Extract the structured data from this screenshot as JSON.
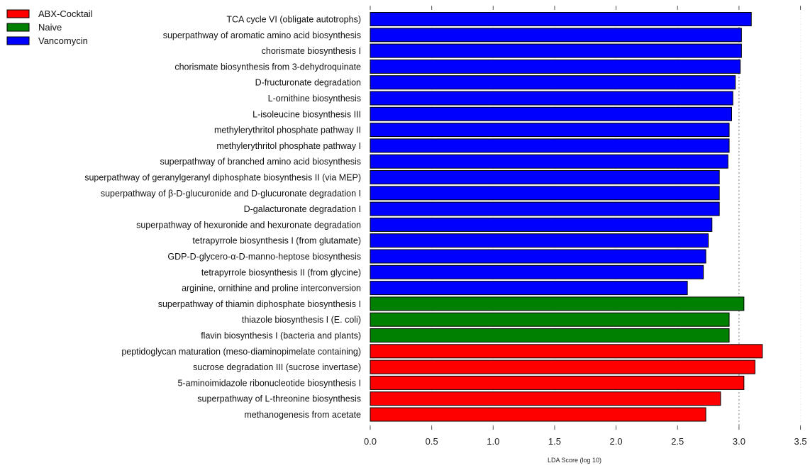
{
  "chart_data": {
    "type": "bar",
    "orientation": "horizontal",
    "title": "",
    "xlabel": "LDA Score (log 10)",
    "ylabel": "",
    "xlim": [
      0,
      3.5
    ],
    "xticks": [
      0.0,
      0.5,
      1.0,
      1.5,
      2.0,
      2.5,
      3.0,
      3.5
    ],
    "xtick_labels": [
      "0.0",
      "0.5",
      "1.0",
      "1.5",
      "2.0",
      "2.5",
      "3.0",
      "3.5"
    ],
    "reference_line": 3.0,
    "legend_position": "top-left",
    "legend": [
      {
        "name": "ABX-Cocktail",
        "color": "#ff0000"
      },
      {
        "name": "Naive",
        "color": "#008000"
      },
      {
        "name": "Vancomycin",
        "color": "#0000ff"
      }
    ],
    "bars": [
      {
        "label": "TCA cycle VI (obligate autotrophs)",
        "value": 3.1,
        "group": "Vancomycin"
      },
      {
        "label": "superpathway of aromatic amino acid biosynthesis",
        "value": 3.02,
        "group": "Vancomycin"
      },
      {
        "label": "chorismate biosynthesis I",
        "value": 3.02,
        "group": "Vancomycin"
      },
      {
        "label": "chorismate biosynthesis from 3-dehydroquinate",
        "value": 3.01,
        "group": "Vancomycin"
      },
      {
        "label": "D-fructuronate degradation",
        "value": 2.97,
        "group": "Vancomycin"
      },
      {
        "label": "L-ornithine biosynthesis",
        "value": 2.95,
        "group": "Vancomycin"
      },
      {
        "label": "L-isoleucine biosynthesis III",
        "value": 2.94,
        "group": "Vancomycin"
      },
      {
        "label": "methylerythritol phosphate pathway II",
        "value": 2.92,
        "group": "Vancomycin"
      },
      {
        "label": "methylerythritol phosphate pathway I",
        "value": 2.92,
        "group": "Vancomycin"
      },
      {
        "label": "superpathway of branched amino acid biosynthesis",
        "value": 2.91,
        "group": "Vancomycin"
      },
      {
        "label": "superpathway of geranylgeranyl diphosphate biosynthesis II (via MEP)",
        "value": 2.84,
        "group": "Vancomycin"
      },
      {
        "label": "superpathway of β-D-glucuronide and D-glucuronate degradation I",
        "value": 2.84,
        "group": "Vancomycin"
      },
      {
        "label": "D-galacturonate degradation I",
        "value": 2.84,
        "group": "Vancomycin"
      },
      {
        "label": "superpathway of hexuronide and hexuronate degradation",
        "value": 2.78,
        "group": "Vancomycin"
      },
      {
        "label": "tetrapyrrole biosynthesis I (from glutamate)",
        "value": 2.75,
        "group": "Vancomycin"
      },
      {
        "label": "GDP-D-glycero-α-D-manno-heptose biosynthesis",
        "value": 2.73,
        "group": "Vancomycin"
      },
      {
        "label": "tetrapyrrole biosynthesis II (from glycine)",
        "value": 2.71,
        "group": "Vancomycin"
      },
      {
        "label": "arginine, ornithine and proline interconversion",
        "value": 2.58,
        "group": "Vancomycin"
      },
      {
        "label": "superpathway of thiamin diphosphate biosynthesis I",
        "value": 3.04,
        "group": "Naive"
      },
      {
        "label": "thiazole biosynthesis I (E. coli)",
        "value": 2.92,
        "group": "Naive"
      },
      {
        "label": "flavin biosynthesis I (bacteria and plants)",
        "value": 2.92,
        "group": "Naive"
      },
      {
        "label": "peptidoglycan maturation (meso-diaminopimelate containing)",
        "value": 3.19,
        "group": "ABX-Cocktail"
      },
      {
        "label": "sucrose degradation III (sucrose invertase)",
        "value": 3.13,
        "group": "ABX-Cocktail"
      },
      {
        "label": "5-aminoimidazole ribonucleotide biosynthesis I",
        "value": 3.04,
        "group": "ABX-Cocktail"
      },
      {
        "label": "superpathway of L-threonine biosynthesis",
        "value": 2.85,
        "group": "ABX-Cocktail"
      },
      {
        "label": "methanogenesis from acetate",
        "value": 2.73,
        "group": "ABX-Cocktail"
      }
    ]
  }
}
